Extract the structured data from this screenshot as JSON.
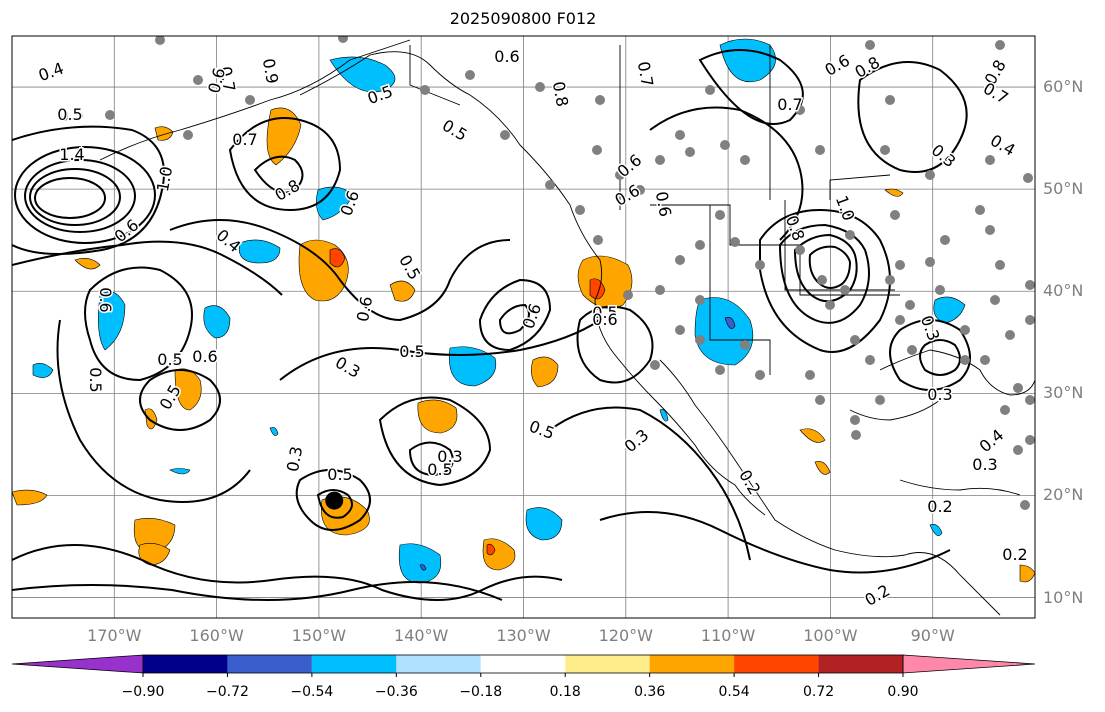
{
  "title": "2025090800 F012",
  "map": {
    "lon_range": [
      -180,
      -80
    ],
    "lat_range": [
      8,
      65
    ],
    "lat_labels": [
      "60°N",
      "50°N",
      "40°N",
      "30°N",
      "20°N",
      "10°N"
    ],
    "lat_values": [
      60,
      50,
      40,
      30,
      20,
      10
    ],
    "lon_labels": [
      "170°W",
      "160°W",
      "150°W",
      "140°W",
      "130°W",
      "120°W",
      "110°W",
      "100°W",
      "90°W"
    ],
    "lon_values": [
      -170,
      -160,
      -150,
      -140,
      -130,
      -120,
      -110,
      -100,
      -90
    ],
    "contour_labels": [
      "0.4",
      "0.5",
      "0.7",
      "0.9",
      "0.6",
      "0.5",
      "0.8",
      "0.6",
      "0.7",
      "0.6",
      "0.8",
      "0.8",
      "0.7",
      "0.5",
      "1.4",
      "1.0",
      "0.7",
      "0.8",
      "0.5",
      "0.6",
      "0.6",
      "0.7",
      "0.3",
      "0.4",
      "1.0",
      "0.8",
      "0.6",
      "0.6",
      "0.4",
      "0.6",
      "0.5",
      "0.6",
      "0.6",
      "0.6",
      "0.5",
      "0.3",
      "0.3",
      "0.5",
      "0.3",
      "0.5",
      "0.5",
      "0.5",
      "0.3",
      "0.2",
      "0.3",
      "0.4",
      "0.3",
      "0.2",
      "0.2",
      "0.2",
      "0.5",
      "0.5",
      "0.6",
      "0.3",
      "0.5",
      "0.6"
    ],
    "storm_marker": {
      "lon": -148.5,
      "lat": 19.5
    },
    "colors": {
      "contour": "#000000",
      "grid": "#7f7f7f",
      "station_dot": "#808080"
    }
  },
  "colorbar": {
    "ticks": [
      "−0.90",
      "−0.72",
      "−0.54",
      "−0.36",
      "−0.18",
      "0.18",
      "0.36",
      "0.54",
      "0.72",
      "0.90"
    ],
    "colors": [
      "#9932cc",
      "#00008b",
      "#3a5fcd",
      "#00bfff",
      "#b0e2ff",
      "#ffffff",
      "#ffec8b",
      "#ffa500",
      "#ff4500",
      "#b22222",
      "#ff88aa"
    ]
  }
}
